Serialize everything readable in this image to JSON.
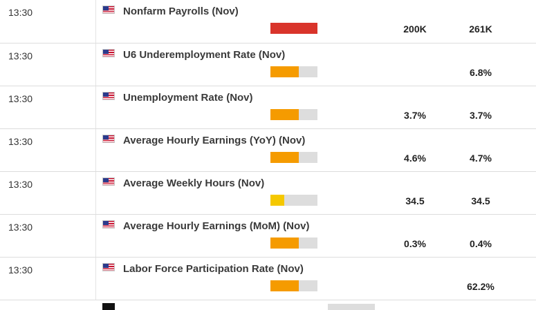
{
  "events": [
    {
      "time": "13:30",
      "name": "Nonfarm Payrolls (Nov)",
      "impact_level": 1.0,
      "impact_color": "#d9342b",
      "forecast": "200K",
      "previous": "261K"
    },
    {
      "time": "13:30",
      "name": "U6 Underemployment Rate (Nov)",
      "impact_level": 0.6,
      "impact_color": "#f59b00",
      "forecast": "",
      "previous": "6.8%"
    },
    {
      "time": "13:30",
      "name": "Unemployment Rate (Nov)",
      "impact_level": 0.6,
      "impact_color": "#f59b00",
      "forecast": "3.7%",
      "previous": "3.7%"
    },
    {
      "time": "13:30",
      "name": "Average Hourly Earnings (YoY) (Nov)",
      "impact_level": 0.6,
      "impact_color": "#f59b00",
      "forecast": "4.6%",
      "previous": "4.7%"
    },
    {
      "time": "13:30",
      "name": "Average Weekly Hours (Nov)",
      "impact_level": 0.3,
      "impact_color": "#f5c800",
      "forecast": "34.5",
      "previous": "34.5"
    },
    {
      "time": "13:30",
      "name": "Average Hourly Earnings (MoM) (Nov)",
      "impact_level": 0.6,
      "impact_color": "#f59b00",
      "forecast": "0.3%",
      "previous": "0.4%"
    },
    {
      "time": "13:30",
      "name": "Labor Force Participation Rate (Nov)",
      "impact_level": 0.6,
      "impact_color": "#f59b00",
      "forecast": "",
      "previous": "62.2%"
    }
  ],
  "flag_icon": "us-flag-icon"
}
